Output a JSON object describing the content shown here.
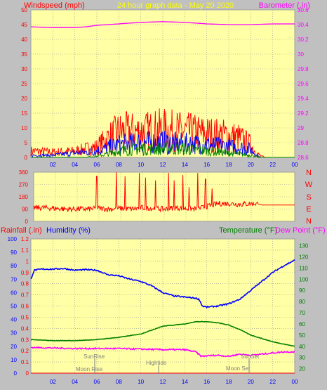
{
  "title": "24 hour graph data - May 20 2020",
  "colors": {
    "background": "#c0c0c0",
    "plot": "#ffffa6",
    "grid": "#9a9a9a",
    "windspeed": "#ff0000",
    "gust_blue": "#0000ff",
    "gust_green": "#008000",
    "barometer": "#ff00ff",
    "direction": "#ff0000",
    "rainfall": "#ff0000",
    "humidity": "#0000ff",
    "temperature": "#008000",
    "dewpoint": "#ff00ff",
    "tick_red": "#ff0000",
    "tick_blue": "#0000ff",
    "tick_green": "#008000",
    "tick_magenta": "#ff00ff",
    "ann": "#808080"
  },
  "wind_panel": {
    "left_label": "Windspeed (mph)",
    "right_label": "Barometer (.in)"
  },
  "dir_panel": {
    "compass": [
      "N",
      "W",
      "S",
      "E",
      "N"
    ]
  },
  "climate_panel": {
    "rain_label": "Rainfall (.in)",
    "hum_label": "Humidity (%)",
    "temp_label": "Temperature (°F)",
    "dew_label": "Dew Point (°F)",
    "annotations": {
      "sunrise": "SunRise",
      "moonrise": "Moon Rise",
      "hightide": "Hightide",
      "sunset": "SunSet",
      "moonset": "Moon Set"
    }
  },
  "chart_data": [
    {
      "type": "line",
      "x_ticks": [
        "02",
        "04",
        "06",
        "08",
        "10",
        "12",
        "14",
        "16",
        "18",
        "20",
        "22",
        "00"
      ],
      "xlim": [
        0,
        24
      ],
      "y_left": {
        "ticks": [
          "0",
          "5",
          "10",
          "15",
          "20",
          "25",
          "30",
          "35",
          "40",
          "45",
          "50"
        ],
        "ylim": [
          0,
          50
        ]
      },
      "y_right": {
        "ticks": [
          "28.6",
          "28.8",
          "29",
          "29.2",
          "29.4",
          "29.6",
          "29.8",
          "30",
          "30.2",
          "30.4",
          "30.6"
        ],
        "ylim": [
          28.6,
          30.6
        ]
      },
      "grid": true,
      "series": [
        {
          "axis": "right",
          "color_key": "barometer",
          "x": [
            0,
            2,
            4,
            5,
            6,
            8,
            10,
            12,
            14,
            16,
            18,
            20,
            22,
            24
          ],
          "values": [
            30.37,
            30.36,
            30.36,
            30.37,
            30.39,
            30.41,
            30.43,
            30.44,
            30.43,
            30.41,
            30.4,
            30.4,
            30.41,
            30.41
          ]
        },
        {
          "axis": "left",
          "color_key": "windspeed",
          "band": true,
          "x": [
            0,
            2,
            4,
            6,
            7,
            8,
            10,
            12,
            14,
            16,
            18,
            19,
            20,
            20.5,
            21,
            21.5,
            24
          ],
          "values": [
            3,
            2.5,
            3,
            5,
            9,
            12,
            12,
            13,
            12,
            11,
            10,
            9,
            6,
            2,
            0.5,
            0,
            0
          ]
        },
        {
          "axis": "left",
          "color_key": "gust_blue",
          "band": true,
          "x": [
            0,
            2,
            4,
            6,
            8,
            10,
            12,
            14,
            16,
            18,
            20,
            20.5,
            21,
            24
          ],
          "values": [
            1,
            1,
            2,
            3,
            6,
            7,
            7,
            6.5,
            6,
            5,
            4,
            1,
            0,
            0
          ]
        },
        {
          "axis": "left",
          "color_key": "gust_green",
          "band": true,
          "x": [
            0,
            4,
            6,
            8,
            10,
            12,
            14,
            16,
            18,
            20,
            20.5,
            21,
            24
          ],
          "values": [
            0,
            0,
            0.5,
            3,
            4,
            4,
            4,
            3,
            2,
            1,
            0.5,
            0,
            0
          ]
        }
      ]
    },
    {
      "type": "line",
      "x_ticks": [
        "02",
        "04",
        "06",
        "08",
        "10",
        "12",
        "14",
        "16",
        "18",
        "20",
        "22",
        "00"
      ],
      "xlim": [
        0,
        24
      ],
      "y_left": {
        "ticks": [
          "0",
          "90",
          "180",
          "270",
          "360"
        ],
        "ylim": [
          0,
          360
        ]
      },
      "grid": true,
      "series": [
        {
          "axis": "left",
          "color_key": "direction",
          "x": [
            0,
            1,
            2,
            3,
            4,
            5,
            6,
            7,
            8,
            9,
            10,
            11,
            12,
            13,
            14,
            15,
            16,
            17,
            18,
            19,
            20,
            20.5,
            21,
            24
          ],
          "values": [
            100,
            100,
            95,
            90,
            90,
            90,
            95,
            90,
            95,
            90,
            100,
            95,
            90,
            100,
            95,
            90,
            110,
            130,
            130,
            125,
            130,
            130,
            120,
            120
          ],
          "spikes": [
            [
              5.8,
              330
            ],
            [
              7.6,
              360
            ],
            [
              8.4,
              330
            ],
            [
              9.7,
              355
            ],
            [
              10.3,
              320
            ],
            [
              11.2,
              300
            ],
            [
              12.4,
              355
            ],
            [
              12.9,
              300
            ],
            [
              13.7,
              340
            ],
            [
              14.3,
              250
            ],
            [
              15.1,
              355
            ],
            [
              15.8,
              310
            ],
            [
              16.4,
              240
            ]
          ]
        }
      ]
    },
    {
      "type": "line",
      "x_ticks": [
        "02",
        "04",
        "06",
        "08",
        "10",
        "12",
        "14",
        "16",
        "18",
        "20",
        "22",
        "00"
      ],
      "xlim": [
        0,
        24
      ],
      "y_left": {
        "ticks": [
          "0",
          "0.1",
          "0.2",
          "0.3",
          "0.4",
          "0.5",
          "0.6",
          "0.7",
          "0.8",
          "0.9",
          "1",
          "1.1",
          "1.2"
        ],
        "ylim": [
          0,
          1.2
        ]
      },
      "y_far_left": {
        "ticks": [
          "0",
          "10",
          "20",
          "30",
          "40",
          "50",
          "60",
          "70",
          "80",
          "90",
          "100"
        ],
        "ylim": [
          0,
          100
        ]
      },
      "y_right": {
        "ticks": [
          "20",
          "30",
          "40",
          "50",
          "60",
          "70",
          "80",
          "90",
          "100",
          "110",
          "120",
          "130"
        ],
        "ylim": [
          16,
          136
        ]
      },
      "grid": true,
      "series": [
        {
          "axis": "right",
          "color_key": "humidity",
          "x": [
            0,
            0.3,
            1,
            2,
            3,
            4,
            5,
            6,
            7,
            8,
            9,
            10,
            11,
            12,
            13,
            14,
            15,
            15.3,
            15.6,
            16,
            17,
            18,
            19,
            20,
            21,
            22,
            23,
            24
          ],
          "values": [
            100,
            108,
            109,
            109,
            109.5,
            108,
            108.5,
            108,
            104,
            103,
            100,
            98,
            94,
            88,
            85,
            84,
            83,
            82,
            76,
            75,
            76,
            78,
            82,
            90,
            98,
            106,
            112,
            117
          ]
        },
        {
          "axis": "right",
          "color_key": "temperature",
          "x": [
            0,
            2,
            4,
            6,
            8,
            10,
            12,
            14,
            15,
            16,
            17,
            18,
            19,
            20,
            22,
            24
          ],
          "values": [
            46,
            45,
            45,
            46,
            48,
            51,
            58,
            60,
            62,
            62,
            61,
            59,
            55,
            50,
            44,
            40
          ]
        },
        {
          "axis": "right",
          "color_key": "dewpoint",
          "x": [
            0,
            2,
            4,
            6,
            8,
            10,
            12,
            14,
            15,
            15.5,
            16,
            17,
            18,
            19,
            20,
            21,
            22,
            23,
            24
          ],
          "values": [
            39,
            38.5,
            38,
            38,
            38,
            37.5,
            37,
            37,
            35,
            31,
            31.5,
            32,
            31,
            33,
            32,
            33,
            34,
            35,
            35
          ]
        },
        {
          "axis": "left",
          "color_key": "rainfall",
          "x": [
            0,
            24
          ],
          "values": [
            0,
            0
          ]
        }
      ]
    }
  ]
}
